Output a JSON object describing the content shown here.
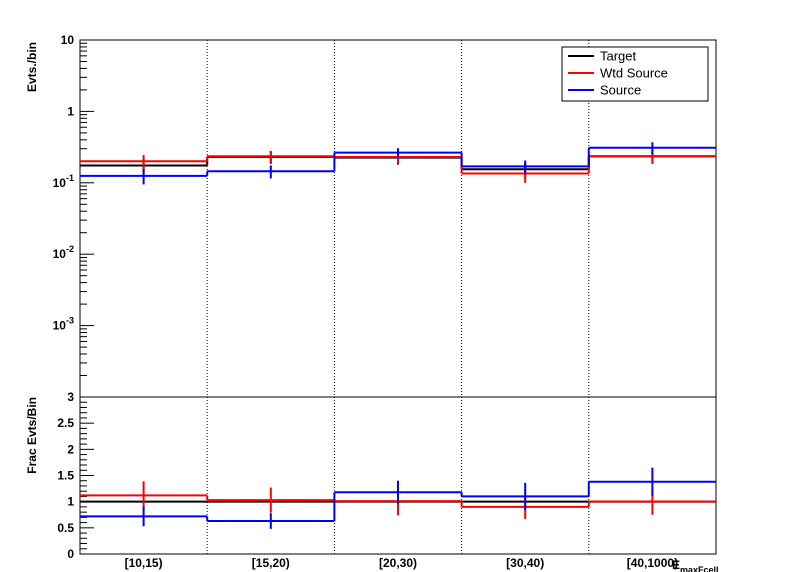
{
  "chart_data": [
    {
      "type": "step",
      "ylabel": "Evts./bin",
      "yscale": "log",
      "ylim": [
        0.0001,
        10
      ],
      "y_ticks": [
        {
          "value": 10,
          "mant": "10",
          "exp": ""
        },
        {
          "value": 1,
          "mant": "1",
          "exp": ""
        },
        {
          "value": 0.1,
          "mant": "10",
          "exp": "-1"
        },
        {
          "value": 0.01,
          "mant": "10",
          "exp": "-2"
        },
        {
          "value": 0.001,
          "mant": "10",
          "exp": "-3"
        }
      ],
      "categories": [
        "[10,15)",
        "[15,20)",
        "[20,30)",
        "[30,40)",
        "[40,1000)"
      ],
      "series": [
        {
          "name": "Target",
          "color": "#000000",
          "values": [
            0.175,
            0.23,
            0.225,
            0.155,
            0.235
          ],
          "errors": [
            0.04,
            0.045,
            0.045,
            0.035,
            0.05
          ]
        },
        {
          "name": "Wtd Source",
          "color": "#ff0000",
          "values": [
            0.2,
            0.235,
            0.23,
            0.135,
            0.235
          ],
          "errors": [
            0.045,
            0.045,
            0.045,
            0.035,
            0.05
          ]
        },
        {
          "name": "Source",
          "color": "#0000ff",
          "values": [
            0.125,
            0.145,
            0.265,
            0.17,
            0.31
          ],
          "errors": [
            0.03,
            0.03,
            0.04,
            0.035,
            0.06
          ]
        }
      ],
      "legend": {
        "placement": "top-right",
        "entries": [
          "Target",
          "Wtd Source",
          "Source"
        ]
      },
      "grid": {
        "x": true,
        "y": false,
        "style": "dotted"
      }
    },
    {
      "type": "step",
      "ylabel": "Frac Evts/Bin",
      "xlabel": "E",
      "xlabel_sub": "maxFcell",
      "ylim": [
        0,
        3
      ],
      "y_ticks": [
        "0",
        "0.5",
        "1",
        "1.5",
        "2",
        "2.5",
        "3"
      ],
      "categories": [
        "[10,15)",
        "[15,20)",
        "[20,30)",
        "[30,40)",
        "[40,1000)"
      ],
      "series": [
        {
          "name": "Target",
          "color": "#000000",
          "values": [
            1.0,
            1.0,
            1.0,
            1.0,
            1.0
          ],
          "errors": [
            0,
            0,
            0,
            0,
            0
          ]
        },
        {
          "name": "Wtd Source",
          "color": "#ff0000",
          "values": [
            1.12,
            1.03,
            1.01,
            0.9,
            1.0
          ],
          "errors": [
            0.27,
            0.24,
            0.27,
            0.23,
            0.25
          ]
        },
        {
          "name": "Source",
          "color": "#0000ff",
          "values": [
            0.72,
            0.63,
            1.18,
            1.1,
            1.38
          ],
          "errors": [
            0.19,
            0.15,
            0.22,
            0.26,
            0.27
          ]
        }
      ],
      "grid": {
        "x": true,
        "y": false,
        "style": "dotted"
      }
    }
  ]
}
